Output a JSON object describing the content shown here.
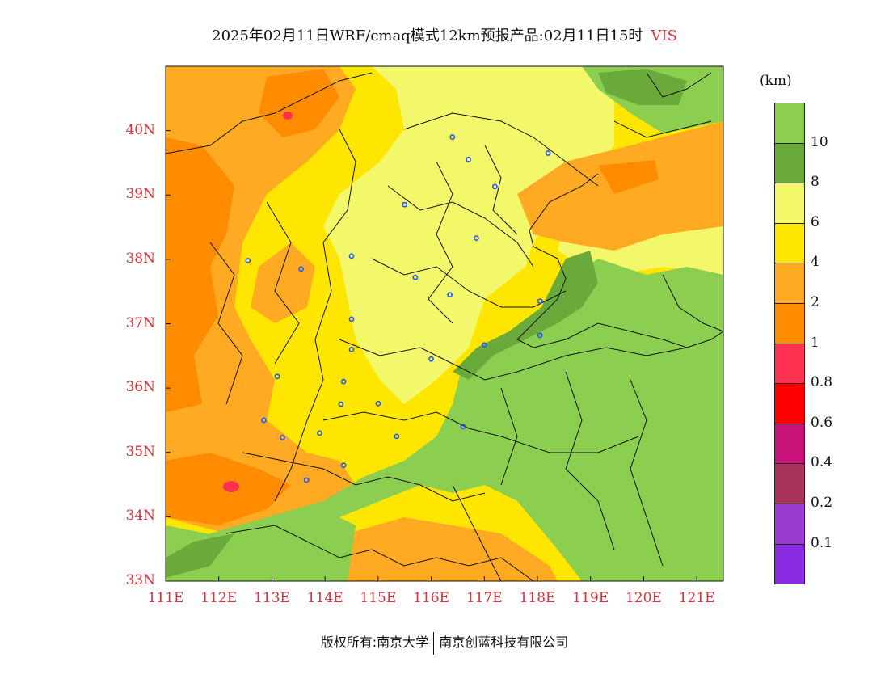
{
  "title": {
    "text": "2025年02月11日WRF/cmaq模式12km预报产品:02月11日15时",
    "variable": "VIS"
  },
  "chart_data": {
    "type": "heatmap",
    "variable": "VIS",
    "unit_label": "(km)",
    "lon_range": [
      111,
      121.5
    ],
    "lat_range": [
      33,
      41
    ],
    "x_tick_labels": [
      "111E",
      "112E",
      "113E",
      "114E",
      "115E",
      "116E",
      "117E",
      "118E",
      "119E",
      "120E",
      "121E"
    ],
    "y_tick_labels": [
      "33N",
      "34N",
      "35N",
      "36N",
      "37N",
      "38N",
      "39N",
      "40N"
    ],
    "colorbar": {
      "levels": [
        "0.1",
        "0.2",
        "0.4",
        "0.6",
        "0.8",
        "1",
        "2",
        "4",
        "6",
        "8",
        "10"
      ],
      "colors": [
        "#8a2be2",
        "#9a3ccf",
        "#a8325a",
        "#c8147a",
        "#ff0000",
        "#ff3050",
        "#ff8c00",
        "#ffaa22",
        "#ffe600",
        "#f3f76a",
        "#6aaa3a",
        "#8ccf50"
      ]
    },
    "stations": [
      {
        "lon": 116.4,
        "lat": 39.9
      },
      {
        "lon": 116.7,
        "lat": 39.55
      },
      {
        "lon": 118.2,
        "lat": 39.65
      },
      {
        "lon": 117.2,
        "lat": 39.13
      },
      {
        "lon": 115.5,
        "lat": 38.85
      },
      {
        "lon": 116.85,
        "lat": 38.33
      },
      {
        "lon": 112.55,
        "lat": 37.98
      },
      {
        "lon": 113.55,
        "lat": 37.85
      },
      {
        "lon": 114.5,
        "lat": 38.05
      },
      {
        "lon": 115.7,
        "lat": 37.72
      },
      {
        "lon": 116.35,
        "lat": 37.45
      },
      {
        "lon": 118.05,
        "lat": 37.35
      },
      {
        "lon": 114.5,
        "lat": 37.07
      },
      {
        "lon": 118.05,
        "lat": 36.82
      },
      {
        "lon": 117.0,
        "lat": 36.67
      },
      {
        "lon": 114.5,
        "lat": 36.6
      },
      {
        "lon": 116.0,
        "lat": 36.45
      },
      {
        "lon": 113.1,
        "lat": 36.18
      },
      {
        "lon": 114.35,
        "lat": 36.1
      },
      {
        "lon": 114.3,
        "lat": 35.75
      },
      {
        "lon": 115.0,
        "lat": 35.76
      },
      {
        "lon": 112.85,
        "lat": 35.5
      },
      {
        "lon": 116.6,
        "lat": 35.4
      },
      {
        "lon": 113.2,
        "lat": 35.23
      },
      {
        "lon": 113.9,
        "lat": 35.3
      },
      {
        "lon": 115.35,
        "lat": 35.25
      },
      {
        "lon": 114.35,
        "lat": 34.8
      },
      {
        "lon": 113.65,
        "lat": 34.57
      }
    ]
  },
  "footer": {
    "left": "版权所有:南京大学",
    "right": "南京创蓝科技有限公司"
  }
}
